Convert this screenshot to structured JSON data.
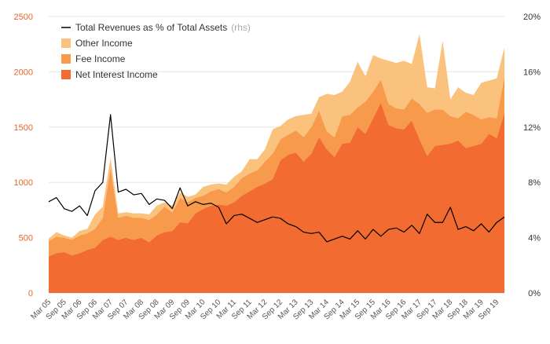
{
  "chart_data": {
    "type": "area",
    "stacked": true,
    "x": [
      "Mar 05",
      "Jun 05",
      "Sep 05",
      "Dec 05",
      "Mar 06",
      "Jun 06",
      "Sep 06",
      "Dec 06",
      "Mar 07",
      "Jun 07",
      "Sep 07",
      "Dec 07",
      "Mar 08",
      "Jun 08",
      "Sep 08",
      "Dec 08",
      "Mar 09",
      "Jun 09",
      "Sep 09",
      "Dec 09",
      "Mar 10",
      "Jun 10",
      "Sep 10",
      "Dec 10",
      "Mar 11",
      "Jun 11",
      "Sep 11",
      "Dec 11",
      "Mar 12",
      "Jun 12",
      "Sep 12",
      "Dec 12",
      "Mar 13",
      "Jun 13",
      "Sep 13",
      "Dec 13",
      "Mar 14",
      "Jun 14",
      "Sep 14",
      "Dec 14",
      "Mar 15",
      "Jun 15",
      "Sep 15",
      "Dec 15",
      "Mar 16",
      "Jun 16",
      "Sep 16",
      "Dec 16",
      "Mar 17",
      "Jun 17",
      "Sep 17",
      "Dec 17",
      "Mar 18",
      "Jun 18",
      "Sep 18",
      "Dec 18",
      "Mar 19",
      "Jun 19",
      "Sep 19",
      "Dec 19"
    ],
    "xtick_labels": [
      "Mar 05",
      "Sep 05",
      "Mar 06",
      "Sep 06",
      "Mar 07",
      "Sep 07",
      "Mar 08",
      "Sep 08",
      "Mar 09",
      "Sep 09",
      "Mar 10",
      "Sep 10",
      "Mar 11",
      "Sep 11",
      "Mar 12",
      "Sep 12",
      "Mar 13",
      "Sep 13",
      "Mar 14",
      "Sep 14",
      "Mar 15",
      "Sep 15",
      "Mar 16",
      "Sep 16",
      "Mar 17",
      "Sep 17",
      "Mar 18",
      "Sep 18",
      "Mar 19",
      "Sep 19"
    ],
    "series": [
      {
        "name": "Net Interest Income",
        "color": "#f26b30",
        "values": [
          330,
          360,
          370,
          340,
          360,
          390,
          410,
          480,
          510,
          480,
          500,
          480,
          500,
          460,
          520,
          550,
          560,
          640,
          630,
          720,
          760,
          790,
          800,
          790,
          820,
          880,
          920,
          960,
          990,
          1030,
          1200,
          1250,
          1270,
          1190,
          1260,
          1410,
          1300,
          1230,
          1350,
          1360,
          1500,
          1440,
          1580,
          1720,
          1520,
          1490,
          1480,
          1560,
          1390,
          1240,
          1330,
          1340,
          1350,
          1380,
          1310,
          1330,
          1350,
          1440,
          1400,
          1630
        ]
      },
      {
        "name": "Fee Income",
        "color": "#f79a4b",
        "values": [
          140,
          150,
          130,
          140,
          160,
          150,
          170,
          200,
          620,
          200,
          200,
          200,
          180,
          200,
          190,
          230,
          170,
          220,
          190,
          140,
          120,
          130,
          140,
          120,
          140,
          160,
          160,
          150,
          200,
          230,
          190,
          180,
          200,
          220,
          240,
          240,
          160,
          180,
          250,
          250,
          180,
          290,
          240,
          210,
          190,
          180,
          180,
          200,
          320,
          390,
          330,
          320,
          250,
          200,
          330,
          280,
          220,
          150,
          180,
          330
        ]
      },
      {
        "name": "Other Income",
        "color": "#fbc27d",
        "values": [
          20,
          40,
          20,
          20,
          40,
          40,
          130,
          100,
          90,
          40,
          30,
          40,
          40,
          50,
          80,
          40,
          60,
          50,
          50,
          30,
          80,
          60,
          50,
          70,
          90,
          60,
          130,
          100,
          110,
          220,
          120,
          140,
          130,
          200,
          120,
          120,
          340,
          380,
          220,
          300,
          410,
          230,
          330,
          190,
          390,
          410,
          440,
          310,
          630,
          230,
          190,
          620,
          150,
          280,
          170,
          180,
          330,
          330,
          360,
          260
        ]
      }
    ],
    "line_series": {
      "name": "Total Revenues as % of Total Assets",
      "axis": "rhs",
      "color": "#000000",
      "values": [
        6.6,
        6.9,
        6.1,
        5.9,
        6.3,
        5.6,
        7.4,
        8.0,
        12.9,
        7.3,
        7.5,
        7.1,
        7.2,
        6.4,
        6.8,
        6.7,
        6.1,
        7.6,
        6.3,
        6.6,
        6.4,
        6.5,
        6.2,
        5.0,
        5.6,
        5.7,
        5.4,
        5.1,
        5.3,
        5.5,
        5.4,
        5.0,
        4.8,
        4.4,
        4.3,
        4.4,
        3.7,
        3.9,
        4.1,
        3.9,
        4.5,
        3.9,
        4.6,
        4.1,
        4.6,
        4.7,
        4.4,
        4.9,
        4.3,
        5.7,
        5.1,
        5.1,
        6.2,
        4.6,
        4.8,
        4.5,
        5.0,
        4.4,
        5.1,
        5.5
      ]
    },
    "ylim_left": [
      0,
      2500
    ],
    "yticks_left": [
      0,
      500,
      1000,
      1500,
      2000,
      2500
    ],
    "ylim_right": [
      0,
      20
    ],
    "yticks_right": [
      "0%",
      "4%",
      "8%",
      "12%",
      "16%",
      "20%"
    ],
    "legend_suffix": "(rhs)",
    "legend_position": "top-left",
    "grid": true,
    "title": "",
    "xlabel": "",
    "ylabel": ""
  }
}
